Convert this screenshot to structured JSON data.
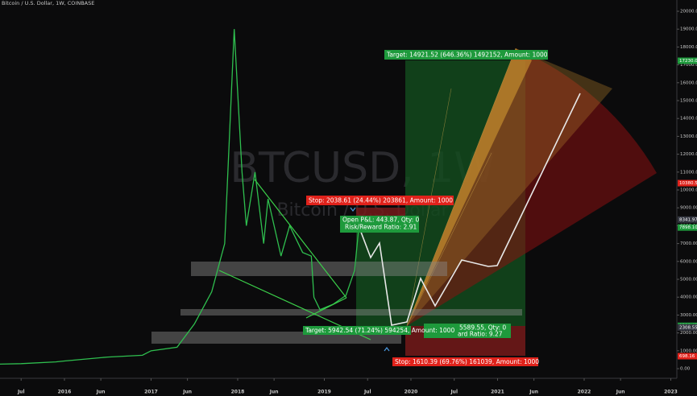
{
  "chart_data": {
    "type": "line",
    "title": "Bitcoin / U.S. Dollar, 1W, COINBASE",
    "watermark": "BTCUSD, 1W",
    "watermark_subtitle": "Bitcoin / U.S. Dollar",
    "color": "#2fbf4f",
    "x": [
      2015.2,
      2015.5,
      2015.9,
      2016.0,
      2016.5,
      2016.9,
      2017.0,
      2017.3,
      2017.5,
      2017.7,
      2017.85,
      2017.96,
      2018.05,
      2018.1,
      2018.2,
      2018.3,
      2018.35,
      2018.5,
      2018.6,
      2018.75,
      2018.85,
      2018.88,
      2018.95,
      2019.1,
      2019.25,
      2019.35,
      2019.4,
      2019.45
    ],
    "values": [
      250,
      280,
      380,
      430,
      650,
      750,
      1000,
      1200,
      2500,
      4300,
      7000,
      19000,
      11000,
      8000,
      11000,
      7000,
      9500,
      6300,
      8000,
      6500,
      6300,
      4000,
      3300,
      3600,
      4100,
      5500,
      8000,
      7898.1
    ],
    "xlim": [
      2015.256,
      2023.07
    ],
    "xticks": [
      {
        "value": 2015.5,
        "label": "Jul"
      },
      {
        "value": 2016.0,
        "label": "2016"
      },
      {
        "value": 2016.42,
        "label": "Jun"
      },
      {
        "value": 2017.0,
        "label": "2017"
      },
      {
        "value": 2017.42,
        "label": "Jun"
      },
      {
        "value": 2018.0,
        "label": "2018"
      },
      {
        "value": 2018.42,
        "label": "Jun"
      },
      {
        "value": 2019.0,
        "label": "2019"
      },
      {
        "value": 2019.5,
        "label": "Jul"
      },
      {
        "value": 2020.0,
        "label": "2020"
      },
      {
        "value": 2020.5,
        "label": "Jul"
      },
      {
        "value": 2021.0,
        "label": "2021"
      },
      {
        "value": 2021.42,
        "label": "Jun"
      },
      {
        "value": 2022.0,
        "label": "2022"
      },
      {
        "value": 2022.42,
        "label": "Jun"
      },
      {
        "value": 2023.0,
        "label": "2023"
      }
    ],
    "ylim": [
      -1530,
      20630
    ],
    "yticks": [
      {
        "value": 0,
        "label": "0.00"
      },
      {
        "value": 1000,
        "label": "1000.00"
      },
      {
        "value": 2000,
        "label": "2000.00"
      },
      {
        "value": 3000,
        "label": "3000.00"
      },
      {
        "value": 4000,
        "label": "4000.00"
      },
      {
        "value": 5000,
        "label": "5000.00"
      },
      {
        "value": 6000,
        "label": "6000.00"
      },
      {
        "value": 7000,
        "label": "7000.00"
      },
      {
        "value": 8000,
        "label": "8000.00"
      },
      {
        "value": 9000,
        "label": "9000.00"
      },
      {
        "value": 10000,
        "label": "10000.00"
      },
      {
        "value": 11000,
        "label": "11000.00"
      },
      {
        "value": 12000,
        "label": "12000.00"
      },
      {
        "value": 13000,
        "label": "13000.00"
      },
      {
        "value": 14000,
        "label": "14000.00"
      },
      {
        "value": 15000,
        "label": "15000.00"
      },
      {
        "value": 16000,
        "label": "16000.00"
      },
      {
        "value": 17000,
        "label": "17000.00"
      },
      {
        "value": 18000,
        "label": "18000.00"
      },
      {
        "value": 19000,
        "label": "19000.00"
      },
      {
        "value": 20000,
        "label": "20000.00"
      }
    ],
    "badges": [
      {
        "value": 17230.07,
        "color": "#1e9a3c"
      },
      {
        "value": 10380.58,
        "color": "#e0221b"
      },
      {
        "value": 8341.97,
        "color": "#333640"
      },
      {
        "value": 7898.1,
        "label": "7898.10",
        "color": "#1e9a3c"
      },
      {
        "value": 2399.43,
        "color": "#1e9a3c"
      },
      {
        "value": 2308.55,
        "color": "#333640"
      },
      {
        "value": 698.16,
        "color": "#e0221b"
      }
    ],
    "annotations": [
      "Target: 14921.52 (646.36%) 1492152, Amount: 1000",
      "Stop: 2038.61 (24.44%) 203861, Amount: 1000",
      "Open P&L: 443.87, Qty: 0",
      "Risk/Reward Ratio: 2.91",
      "Target: 5942.54 (71.24%) 594254, Amount: 1000",
      "5589.55, Qty: 0",
      "ard Ratio: 9.27",
      "Stop: 1610.39 (69.76%) 161039, Amount: 1000"
    ]
  }
}
